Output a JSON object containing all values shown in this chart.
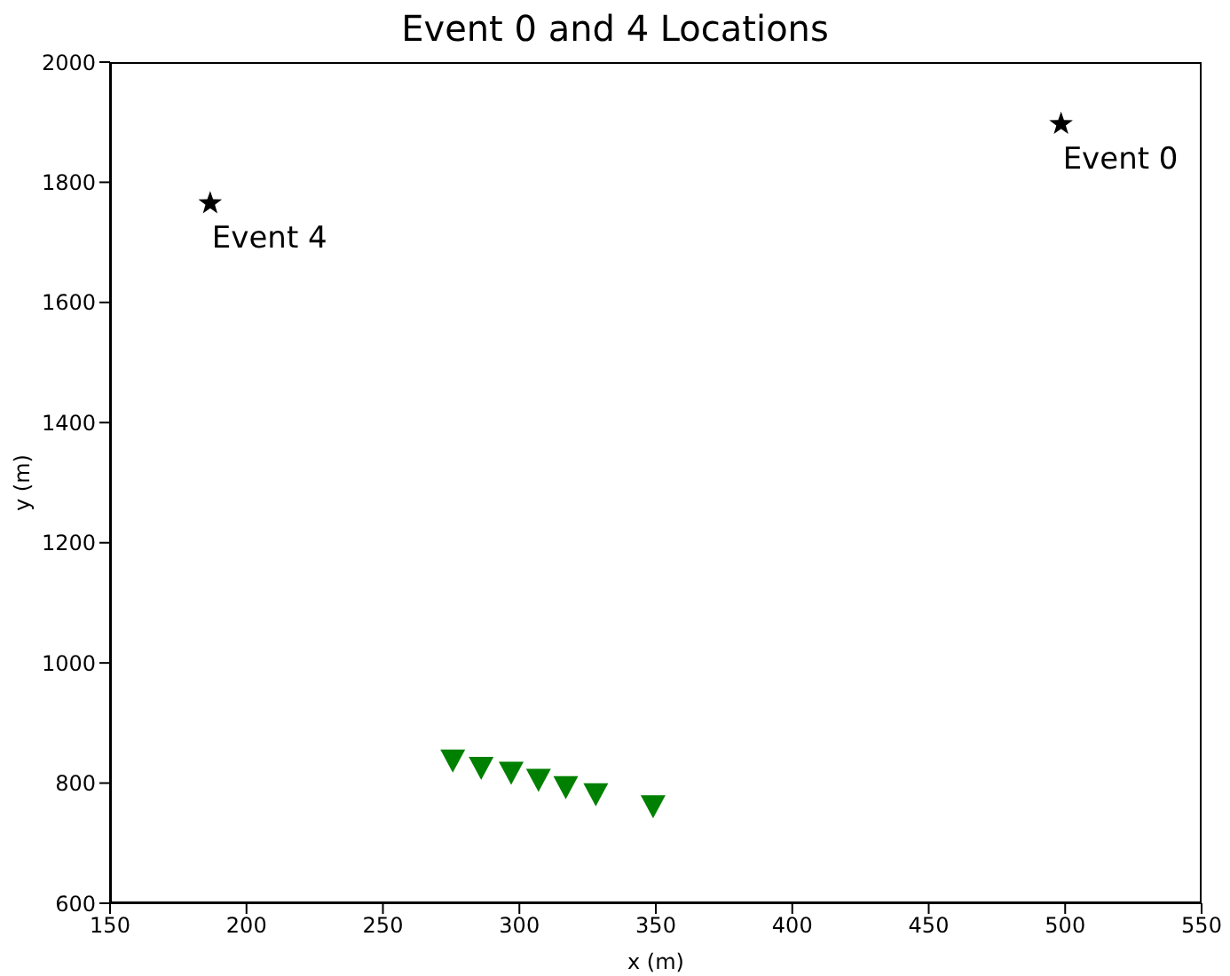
{
  "chart_data": {
    "type": "scatter",
    "title": "Event 0 and 4 Locations",
    "xlabel": "x (m)",
    "ylabel": "y (m)",
    "xlim": [
      150,
      550
    ],
    "xticks": [
      150,
      200,
      250,
      300,
      350,
      400,
      450,
      500,
      550
    ],
    "ylim": [
      600,
      2000
    ],
    "yticks": [
      600,
      800,
      1000,
      1200,
      1400,
      1600,
      1800,
      2000
    ],
    "grid": false,
    "legend": false,
    "series": [
      {
        "color": "#000000",
        "marker": "star",
        "x": [
          498.5,
          186.7
        ],
        "values": [
          1897,
          1765
        ]
      },
      {
        "color": "#008000",
        "marker": "triangle",
        "x": [
          275.6,
          286,
          297,
          307,
          317,
          328,
          349
        ],
        "values": [
          838,
          826,
          818,
          806,
          794,
          782,
          762
        ]
      }
    ],
    "annotations": [
      {
        "text": "Event 0",
        "x": 498.5,
        "y": 1897
      },
      {
        "text": "Event 4",
        "x": 186.7,
        "y": 1765
      }
    ]
  }
}
